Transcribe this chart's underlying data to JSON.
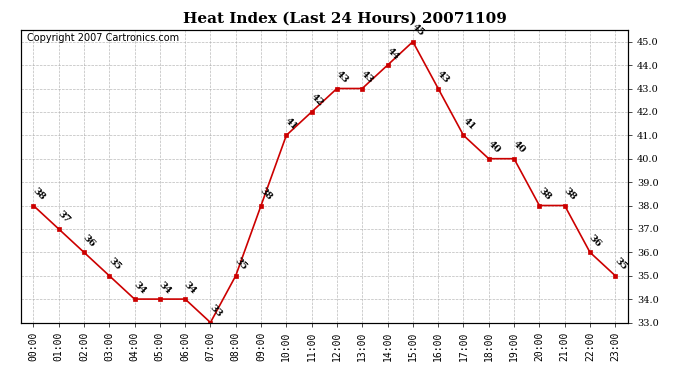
{
  "title": "Heat Index (Last 24 Hours) 20071109",
  "copyright": "Copyright 2007 Cartronics.com",
  "hours": [
    "00:00",
    "01:00",
    "02:00",
    "03:00",
    "04:00",
    "05:00",
    "06:00",
    "07:00",
    "08:00",
    "09:00",
    "10:00",
    "11:00",
    "12:00",
    "13:00",
    "14:00",
    "15:00",
    "16:00",
    "17:00",
    "18:00",
    "19:00",
    "20:00",
    "21:00",
    "22:00",
    "23:00"
  ],
  "values": [
    38,
    37,
    36,
    35,
    34,
    34,
    34,
    33,
    35,
    38,
    41,
    42,
    43,
    43,
    44,
    45,
    43,
    41,
    40,
    40,
    38,
    38,
    36,
    35
  ],
  "line_color": "#cc0000",
  "marker_color": "#cc0000",
  "bg_color": "#ffffff",
  "grid_color": "#aaaaaa",
  "ylim_min": 33.0,
  "ylim_max": 45.5,
  "ytick_min": 33.0,
  "ytick_max": 45.0,
  "ytick_step": 1.0,
  "title_fontsize": 11,
  "label_fontsize": 7,
  "copyright_fontsize": 7,
  "tick_fontsize": 7
}
